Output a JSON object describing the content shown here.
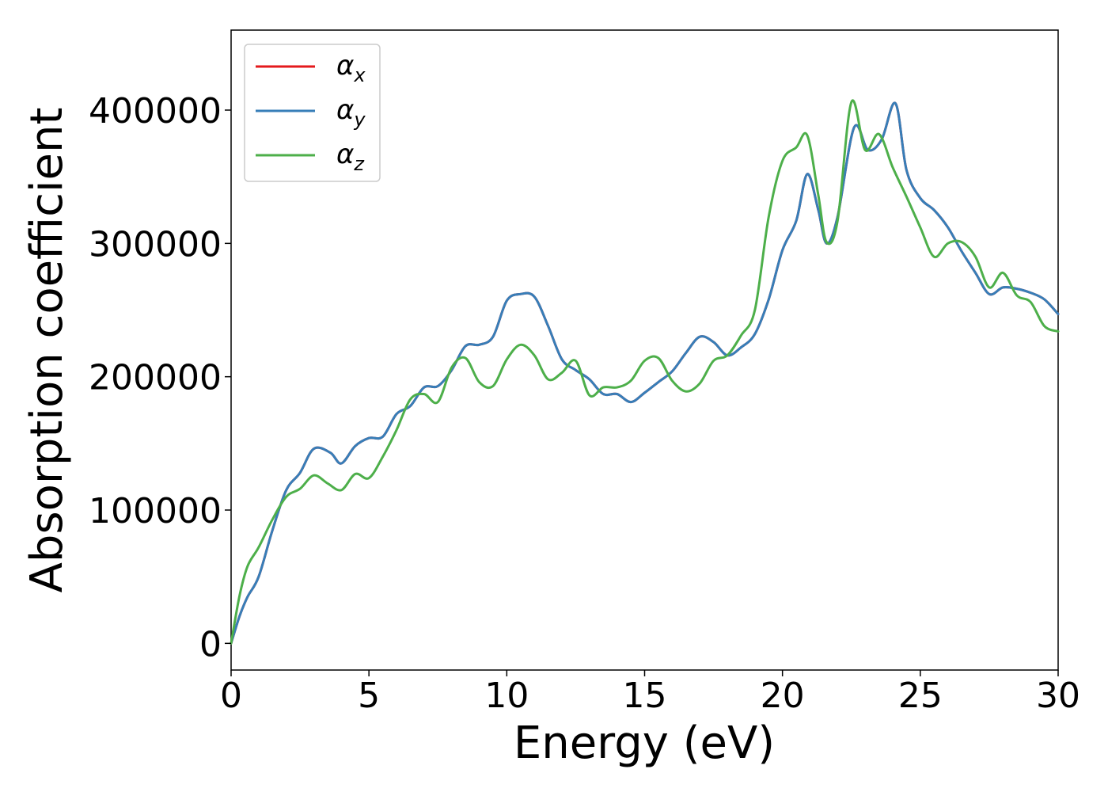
{
  "chart_data": {
    "type": "line",
    "title": "",
    "xlabel": "Energy (eV)",
    "ylabel": "Absorption coefficient",
    "xlim": [
      0,
      30
    ],
    "ylim": [
      -20000,
      460000
    ],
    "xticks": [
      0,
      5,
      10,
      15,
      20,
      25,
      30
    ],
    "xtick_labels": [
      "0",
      "5",
      "10",
      "15",
      "20",
      "25",
      "30"
    ],
    "yticks": [
      0,
      100000,
      200000,
      300000,
      400000
    ],
    "ytick_labels": [
      "0",
      "100000",
      "200000",
      "300000",
      "400000"
    ],
    "grid": false,
    "legend_position": "top-left",
    "legend": [
      {
        "base": "α",
        "sub": "x",
        "color": "#e41a1c"
      },
      {
        "base": "α",
        "sub": "y",
        "color": "#377eb8"
      },
      {
        "base": "α",
        "sub": "z",
        "color": "#4daf4a"
      }
    ],
    "series": [
      {
        "name": "αx",
        "color": "#e41a1c",
        "points": [
          [
            0,
            0
          ],
          [
            0.3,
            20000
          ],
          [
            0.6,
            35000
          ],
          [
            1,
            50000
          ],
          [
            1.5,
            85000
          ],
          [
            2,
            115000
          ],
          [
            2.5,
            128000
          ],
          [
            3,
            146000
          ],
          [
            3.6,
            143000
          ],
          [
            4,
            135000
          ],
          [
            4.5,
            148000
          ],
          [
            5,
            154000
          ],
          [
            5.5,
            155000
          ],
          [
            6,
            172000
          ],
          [
            6.5,
            178000
          ],
          [
            7,
            192000
          ],
          [
            7.5,
            193000
          ],
          [
            8,
            205000
          ],
          [
            8.5,
            223000
          ],
          [
            9,
            224000
          ],
          [
            9.5,
            230000
          ],
          [
            10,
            257000
          ],
          [
            10.5,
            262000
          ],
          [
            11,
            260000
          ],
          [
            11.5,
            238000
          ],
          [
            12,
            213000
          ],
          [
            12.5,
            205000
          ],
          [
            13,
            198000
          ],
          [
            13.5,
            187000
          ],
          [
            14,
            187000
          ],
          [
            14.5,
            181000
          ],
          [
            15,
            188000
          ],
          [
            15.5,
            196000
          ],
          [
            16,
            204000
          ],
          [
            16.5,
            218000
          ],
          [
            17,
            230000
          ],
          [
            17.5,
            226000
          ],
          [
            18,
            216000
          ],
          [
            18.5,
            222000
          ],
          [
            19,
            232000
          ],
          [
            19.5,
            258000
          ],
          [
            20,
            295000
          ],
          [
            20.5,
            317000
          ],
          [
            20.9,
            352000
          ],
          [
            21.3,
            325000
          ],
          [
            21.6,
            300000
          ],
          [
            22,
            320000
          ],
          [
            22.6,
            387000
          ],
          [
            23.1,
            370000
          ],
          [
            23.6,
            378000
          ],
          [
            24.1,
            405000
          ],
          [
            24.5,
            355000
          ],
          [
            25,
            334000
          ],
          [
            25.5,
            325000
          ],
          [
            26,
            312000
          ],
          [
            26.5,
            294000
          ],
          [
            27,
            278000
          ],
          [
            27.5,
            262000
          ],
          [
            28,
            267000
          ],
          [
            28.5,
            266000
          ],
          [
            29,
            263000
          ],
          [
            29.5,
            258000
          ],
          [
            30,
            247000
          ]
        ]
      },
      {
        "name": "αy",
        "color": "#377eb8",
        "points": [
          [
            0,
            0
          ],
          [
            0.3,
            20000
          ],
          [
            0.6,
            35000
          ],
          [
            1,
            50000
          ],
          [
            1.5,
            85000
          ],
          [
            2,
            115000
          ],
          [
            2.5,
            128000
          ],
          [
            3,
            146000
          ],
          [
            3.6,
            143000
          ],
          [
            4,
            135000
          ],
          [
            4.5,
            148000
          ],
          [
            5,
            154000
          ],
          [
            5.5,
            155000
          ],
          [
            6,
            172000
          ],
          [
            6.5,
            178000
          ],
          [
            7,
            192000
          ],
          [
            7.5,
            193000
          ],
          [
            8,
            205000
          ],
          [
            8.5,
            223000
          ],
          [
            9,
            224000
          ],
          [
            9.5,
            230000
          ],
          [
            10,
            257000
          ],
          [
            10.5,
            262000
          ],
          [
            11,
            260000
          ],
          [
            11.5,
            238000
          ],
          [
            12,
            213000
          ],
          [
            12.5,
            205000
          ],
          [
            13,
            198000
          ],
          [
            13.5,
            187000
          ],
          [
            14,
            187000
          ],
          [
            14.5,
            181000
          ],
          [
            15,
            188000
          ],
          [
            15.5,
            196000
          ],
          [
            16,
            204000
          ],
          [
            16.5,
            218000
          ],
          [
            17,
            230000
          ],
          [
            17.5,
            226000
          ],
          [
            18,
            216000
          ],
          [
            18.5,
            222000
          ],
          [
            19,
            232000
          ],
          [
            19.5,
            258000
          ],
          [
            20,
            295000
          ],
          [
            20.5,
            317000
          ],
          [
            20.9,
            352000
          ],
          [
            21.3,
            325000
          ],
          [
            21.6,
            300000
          ],
          [
            22,
            320000
          ],
          [
            22.6,
            387000
          ],
          [
            23.1,
            370000
          ],
          [
            23.6,
            378000
          ],
          [
            24.1,
            405000
          ],
          [
            24.5,
            355000
          ],
          [
            25,
            334000
          ],
          [
            25.5,
            325000
          ],
          [
            26,
            312000
          ],
          [
            26.5,
            294000
          ],
          [
            27,
            278000
          ],
          [
            27.5,
            262000
          ],
          [
            28,
            267000
          ],
          [
            28.5,
            266000
          ],
          [
            29,
            263000
          ],
          [
            29.5,
            258000
          ],
          [
            30,
            247000
          ]
        ]
      },
      {
        "name": "αz",
        "color": "#4daf4a",
        "points": [
          [
            0,
            0
          ],
          [
            0.3,
            35000
          ],
          [
            0.6,
            58000
          ],
          [
            1,
            72000
          ],
          [
            1.5,
            93000
          ],
          [
            2,
            110000
          ],
          [
            2.5,
            116000
          ],
          [
            3,
            126000
          ],
          [
            3.5,
            120000
          ],
          [
            4,
            115000
          ],
          [
            4.5,
            127000
          ],
          [
            5,
            124000
          ],
          [
            5.5,
            140000
          ],
          [
            6,
            160000
          ],
          [
            6.5,
            183000
          ],
          [
            7,
            187000
          ],
          [
            7.5,
            181000
          ],
          [
            8,
            207000
          ],
          [
            8.5,
            214000
          ],
          [
            9,
            196000
          ],
          [
            9.5,
            193000
          ],
          [
            10,
            213000
          ],
          [
            10.5,
            224000
          ],
          [
            11,
            216000
          ],
          [
            11.5,
            198000
          ],
          [
            12,
            203000
          ],
          [
            12.5,
            212000
          ],
          [
            13,
            186000
          ],
          [
            13.5,
            192000
          ],
          [
            14,
            192000
          ],
          [
            14.5,
            197000
          ],
          [
            15,
            212000
          ],
          [
            15.5,
            214000
          ],
          [
            16,
            197000
          ],
          [
            16.5,
            189000
          ],
          [
            17,
            195000
          ],
          [
            17.5,
            212000
          ],
          [
            18,
            216000
          ],
          [
            18.5,
            231000
          ],
          [
            19,
            250000
          ],
          [
            19.5,
            320000
          ],
          [
            20,
            362000
          ],
          [
            20.5,
            372000
          ],
          [
            20.9,
            381000
          ],
          [
            21.3,
            336000
          ],
          [
            21.6,
            301000
          ],
          [
            22,
            317000
          ],
          [
            22.5,
            406000
          ],
          [
            23,
            370000
          ],
          [
            23.5,
            382000
          ],
          [
            24,
            357000
          ],
          [
            24.5,
            335000
          ],
          [
            25,
            312000
          ],
          [
            25.5,
            290000
          ],
          [
            26,
            300000
          ],
          [
            26.5,
            301000
          ],
          [
            27,
            290000
          ],
          [
            27.5,
            267000
          ],
          [
            28,
            278000
          ],
          [
            28.5,
            261000
          ],
          [
            29,
            256000
          ],
          [
            29.5,
            238000
          ],
          [
            30,
            234000
          ]
        ]
      }
    ]
  }
}
